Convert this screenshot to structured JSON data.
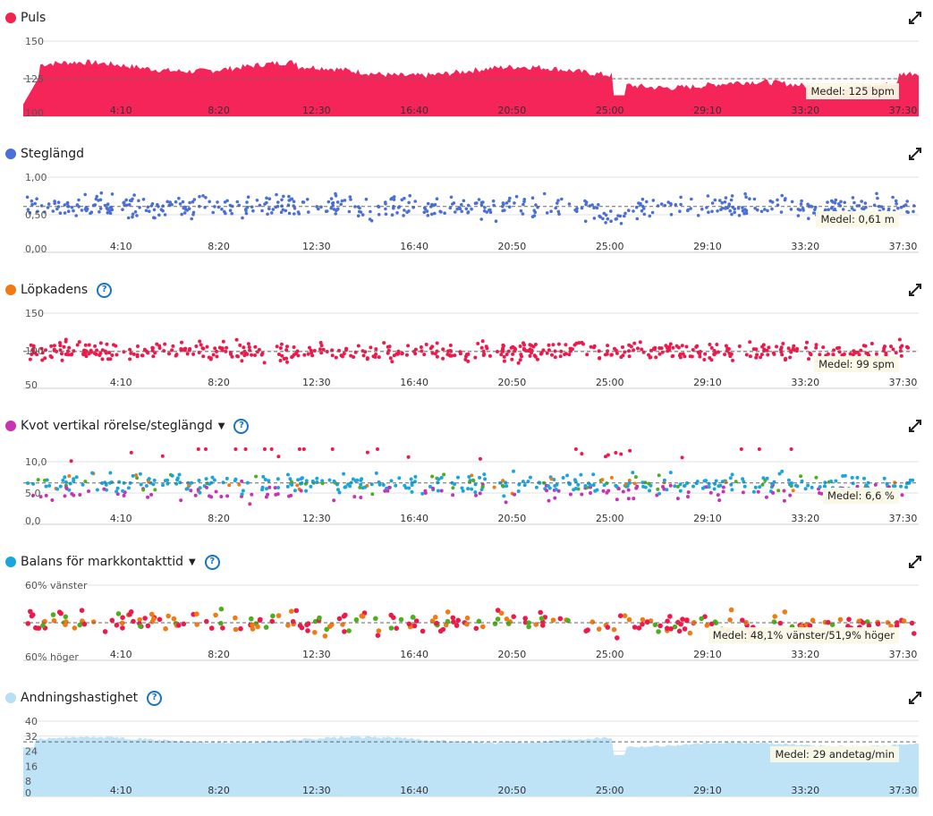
{
  "panels": [
    {
      "id": "puls",
      "title": "Puls",
      "color": "#f0244c",
      "has_help": false,
      "has_caret": false,
      "type": "area",
      "ylim": [
        100,
        150
      ],
      "yticks": [
        "150",
        "125",
        "100"
      ],
      "ytick_values": [
        150,
        125,
        100
      ],
      "average": 125,
      "avg_label": "Medel: 125 bpm"
    },
    {
      "id": "steglangd",
      "title": "Steglängd",
      "color": "#4a6fd6",
      "has_help": false,
      "has_caret": false,
      "type": "scatter",
      "ylim": [
        0,
        1.0
      ],
      "yticks": [
        "1,00",
        "0,50",
        "0,00"
      ],
      "ytick_values": [
        1.0,
        0.5,
        0.0
      ],
      "average": 0.61,
      "avg_label": "Medel: 0,61 m"
    },
    {
      "id": "lopkadens",
      "title": "Löpkadens",
      "color": "#f07a14",
      "has_help": true,
      "has_caret": false,
      "type": "scatter",
      "ylim": [
        50,
        150
      ],
      "yticks": [
        "150",
        "100",
        "50"
      ],
      "ytick_values": [
        150,
        100,
        50
      ],
      "average": 99,
      "avg_label": "Medel: 99 spm"
    },
    {
      "id": "kvot",
      "title": "Kvot vertikal rörelse/steglängd",
      "color": "#c832b4",
      "has_help": true,
      "has_caret": true,
      "type": "scatter",
      "ylim": [
        0,
        12
      ],
      "yticks": [
        "10,0",
        "5,0",
        "0,0"
      ],
      "ytick_values": [
        10,
        5,
        0
      ],
      "average": 6.6,
      "avg_label": "Medel: 6,6 %"
    },
    {
      "id": "balans",
      "title": "Balans för markkontakttid",
      "color": "#1aa6dc",
      "has_help": true,
      "has_caret": true,
      "type": "scatter",
      "ylim": [
        -60,
        60
      ],
      "yticks": [
        "60% vänster",
        "60% höger"
      ],
      "ytick_values": [
        60,
        -60
      ],
      "average": 0,
      "avg_label": "Medel: 48,1% vänster/51,9% höger"
    },
    {
      "id": "andning",
      "title": "Andningshastighet",
      "color": "#b9def5",
      "has_help": true,
      "has_caret": false,
      "type": "area",
      "ylim": [
        0,
        40
      ],
      "yticks": [
        "40",
        "32",
        "24",
        "16",
        "8",
        "0"
      ],
      "ytick_values": [
        40,
        32,
        24,
        16,
        8,
        0
      ],
      "average": 29,
      "avg_label": "Medel: 29 andetag/min"
    }
  ],
  "xticks": [
    "4:10",
    "8:20",
    "12:30",
    "16:40",
    "20:50",
    "25:00",
    "29:10",
    "33:20",
    "37:30"
  ],
  "xtick_seconds": [
    250,
    500,
    750,
    1000,
    1250,
    1500,
    1750,
    2000,
    2250
  ],
  "x_range_seconds": [
    0,
    2290
  ],
  "chart_data": [
    {
      "type": "area",
      "title": "Puls",
      "ylim": [
        100,
        150
      ],
      "average": 125
    },
    {
      "type": "scatter",
      "title": "Steglängd",
      "ylim": [
        0,
        1.0
      ],
      "average": 0.61
    },
    {
      "type": "scatter",
      "title": "Löpkadens",
      "ylim": [
        50,
        150
      ],
      "average": 99
    },
    {
      "type": "scatter",
      "title": "Kvot vertikal rörelse/steglängd",
      "ylim": [
        0,
        12
      ],
      "average": 6.6
    },
    {
      "type": "scatter",
      "title": "Balans för markkontakttid",
      "ylim": [
        -60,
        60
      ],
      "average": 0
    },
    {
      "type": "area",
      "title": "Andningshastighet",
      "ylim": [
        0,
        40
      ],
      "average": 29
    }
  ]
}
